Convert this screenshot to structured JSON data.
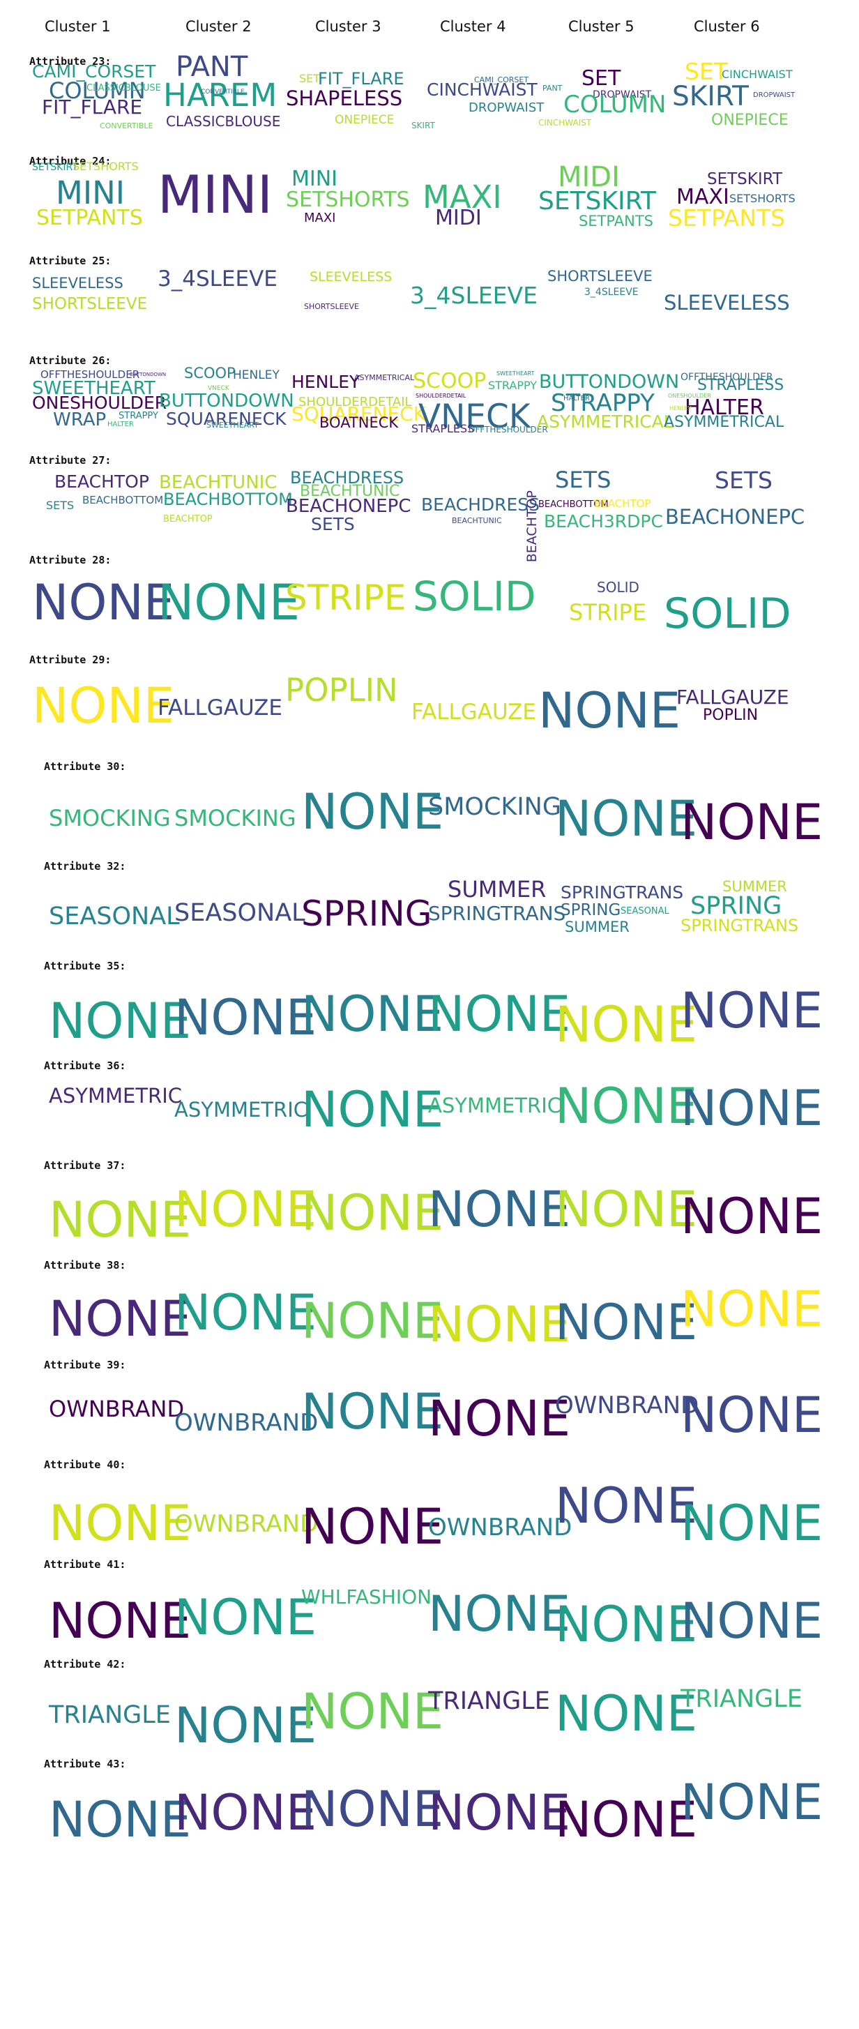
{
  "clusters": [
    "Cluster 1",
    "Cluster 2",
    "Cluster 3",
    "Cluster 4",
    "Cluster 5",
    "Cluster 6"
  ],
  "attributes": [
    {
      "label": "Attribute 23:",
      "words": [
        {
          "t": "CAMI_CORSET",
          "c": "#1f9e89"
        },
        {
          "t": "COLUMN",
          "c": "#31688e"
        },
        {
          "t": "CLASSICBLOUSE",
          "c": "#35b779"
        },
        {
          "t": "FIT_FLARE",
          "c": "#482878"
        },
        {
          "t": "CONVERTIBLE",
          "c": "#6ece58"
        },
        {
          "t": "PANT",
          "c": "#3e4989"
        },
        {
          "t": "HAREM",
          "c": "#1f9e89"
        },
        {
          "t": "CLASSICBLOUSE",
          "c": "#482878"
        },
        {
          "t": "CONVERTIBLE",
          "c": "#31688e"
        },
        {
          "t": "SET",
          "c": "#b5de2b"
        },
        {
          "t": "FIT_FLARE",
          "c": "#26828e"
        },
        {
          "t": "SHAPELESS",
          "c": "#440154"
        },
        {
          "t": "ONEPIECE",
          "c": "#b5de2b"
        },
        {
          "t": "CINCHWAIST",
          "c": "#3e4989"
        },
        {
          "t": "CAMI_CORSET",
          "c": "#31688e"
        },
        {
          "t": "DROPWAIST",
          "c": "#26828e"
        },
        {
          "t": "SKIRT",
          "c": "#35b779"
        },
        {
          "t": "SET",
          "c": "#440154"
        },
        {
          "t": "DROPWAIST",
          "c": "#482878"
        },
        {
          "t": "COLUMN",
          "c": "#35b779"
        },
        {
          "t": "CINCHWAIST",
          "c": "#b5de2b"
        },
        {
          "t": "PANT",
          "c": "#26828e"
        },
        {
          "t": "SET",
          "c": "#fde725"
        },
        {
          "t": "CINCHWAIST",
          "c": "#1f9e89"
        },
        {
          "t": "SKIRT",
          "c": "#31688e"
        },
        {
          "t": "ONEPIECE",
          "c": "#6ece58"
        },
        {
          "t": "DROPWAIST",
          "c": "#3e4989"
        }
      ]
    },
    {
      "label": "Attribute 24:",
      "words": [
        {
          "t": "SETSKIRT",
          "c": "#1f9e89"
        },
        {
          "t": "SETSHORTS",
          "c": "#b5de2b"
        },
        {
          "t": "MINI",
          "c": "#26828e"
        },
        {
          "t": "SETPANTS",
          "c": "#d0e11c"
        },
        {
          "t": "MINI",
          "c": "#482878"
        },
        {
          "t": "MINI",
          "c": "#1f9e89"
        },
        {
          "t": "SETSHORTS",
          "c": "#6ece58"
        },
        {
          "t": "MAXI",
          "c": "#440154"
        },
        {
          "t": "MAXI",
          "c": "#35b779"
        },
        {
          "t": "MIDI",
          "c": "#482878"
        },
        {
          "t": "MIDI",
          "c": "#6ece58"
        },
        {
          "t": "SETSKIRT",
          "c": "#1f9e89"
        },
        {
          "t": "SETPANTS",
          "c": "#35b779"
        },
        {
          "t": "SETSKIRT",
          "c": "#482878"
        },
        {
          "t": "MAXI",
          "c": "#440154"
        },
        {
          "t": "SETSHORTS",
          "c": "#31688e"
        },
        {
          "t": "SETPANTS",
          "c": "#fde725"
        }
      ]
    },
    {
      "label": "Attribute 25:",
      "words": [
        {
          "t": "SLEEVELESS",
          "c": "#31688e"
        },
        {
          "t": "SHORTSLEEVE",
          "c": "#b5de2b"
        },
        {
          "t": "3_4SLEEVE",
          "c": "#3e4989"
        },
        {
          "t": "SLEEVELESS",
          "c": "#b5de2b"
        },
        {
          "t": "SHORTSLEEVE",
          "c": "#482878"
        },
        {
          "t": "3_4SLEEVE",
          "c": "#1f9e89"
        },
        {
          "t": "SHORTSLEEVE",
          "c": "#31688e"
        },
        {
          "t": "3_4SLEEVE",
          "c": "#26828e"
        },
        {
          "t": "SLEEVELESS",
          "c": "#31688e"
        }
      ]
    },
    {
      "label": "Attribute 26:",
      "words": [
        {
          "t": "OFFTHESHOULDER",
          "c": "#3e4989"
        },
        {
          "t": "SWEETHEART",
          "c": "#1f9e89"
        },
        {
          "t": "ONESHOULDER",
          "c": "#440154"
        },
        {
          "t": "WRAP",
          "c": "#31688e"
        },
        {
          "t": "STRAPPY",
          "c": "#26828e"
        },
        {
          "t": "HALTER",
          "c": "#35b779"
        },
        {
          "t": "BUTTONDOWN",
          "c": "#482878"
        },
        {
          "t": "SCOOP",
          "c": "#26828e"
        },
        {
          "t": "HENLEY",
          "c": "#31688e"
        },
        {
          "t": "BUTTONDOWN",
          "c": "#1f9e89"
        },
        {
          "t": "SQUARENECK",
          "c": "#3e4989"
        },
        {
          "t": "SWEETHEART",
          "c": "#26828e"
        },
        {
          "t": "VNECK",
          "c": "#6ece58"
        },
        {
          "t": "HENLEY",
          "c": "#440154"
        },
        {
          "t": "ASYMMETRICAL",
          "c": "#482878"
        },
        {
          "t": "SHOULDERDETAIL",
          "c": "#b5de2b"
        },
        {
          "t": "SQUARENECK",
          "c": "#fde725"
        },
        {
          "t": "BOATNECK",
          "c": "#440154"
        },
        {
          "t": "SCOOP",
          "c": "#d0e11c"
        },
        {
          "t": "SWEETHEART",
          "c": "#26828e"
        },
        {
          "t": "STRAPPY",
          "c": "#35b779"
        },
        {
          "t": "VNECK",
          "c": "#31688e"
        },
        {
          "t": "STRAPLESS",
          "c": "#482878"
        },
        {
          "t": "OFFTHESHOULDER",
          "c": "#26828e"
        },
        {
          "t": "SHOULDERDETAIL",
          "c": "#440154"
        },
        {
          "t": "BUTTONDOWN",
          "c": "#1f9e89"
        },
        {
          "t": "STRAPPY",
          "c": "#26828e"
        },
        {
          "t": "HALTER",
          "c": "#31688e"
        },
        {
          "t": "ASYMMETRICAL",
          "c": "#b5de2b"
        },
        {
          "t": "ONESHOULDER",
          "c": "#6ece58"
        },
        {
          "t": "OFFTHESHOULDER",
          "c": "#31688e"
        },
        {
          "t": "STRAPLESS",
          "c": "#26828e"
        },
        {
          "t": "HALTER",
          "c": "#440154"
        },
        {
          "t": "ASYMMETRICAL",
          "c": "#26828e"
        },
        {
          "t": "HENLEY",
          "c": "#b5de2b"
        }
      ]
    },
    {
      "label": "Attribute 27:",
      "words": [
        {
          "t": "BEACHTOP",
          "c": "#482878"
        },
        {
          "t": "SETS",
          "c": "#26828e"
        },
        {
          "t": "BEACHBOTTOM",
          "c": "#31688e"
        },
        {
          "t": "BEACHTUNIC",
          "c": "#b5de2b"
        },
        {
          "t": "BEACHBOTTOM",
          "c": "#1f9e89"
        },
        {
          "t": "BEACHTOP",
          "c": "#b5de2b"
        },
        {
          "t": "BEACHDRESS",
          "c": "#26828e"
        },
        {
          "t": "BEACHTUNIC",
          "c": "#6ece58"
        },
        {
          "t": "BEACHONEPC",
          "c": "#482878"
        },
        {
          "t": "SETS",
          "c": "#3e4989"
        },
        {
          "t": "BEACHDRESS",
          "c": "#31688e"
        },
        {
          "t": "BEACHTUNIC",
          "c": "#3e4989"
        },
        {
          "t": "BEACHTOP",
          "c": "#482878"
        },
        {
          "t": "SETS",
          "c": "#31688e"
        },
        {
          "t": "BEACHBOTTOM",
          "c": "#440154"
        },
        {
          "t": "BEACHTOP",
          "c": "#fde725"
        },
        {
          "t": "BEACH3RDPC",
          "c": "#35b779"
        },
        {
          "t": "SETS",
          "c": "#3e4989"
        },
        {
          "t": "BEACHONEPC",
          "c": "#31688e"
        }
      ]
    },
    {
      "label": "Attribute 28:",
      "words": [
        {
          "t": "NONE",
          "c": "#3e4989"
        },
        {
          "t": "NONE",
          "c": "#1f9e89"
        },
        {
          "t": "STRIPE",
          "c": "#d0e11c"
        },
        {
          "t": "SOLID",
          "c": "#35b779"
        },
        {
          "t": "SOLID",
          "c": "#3e4989"
        },
        {
          "t": "STRIPE",
          "c": "#d0e11c"
        },
        {
          "t": "SOLID",
          "c": "#1f9e89"
        }
      ]
    },
    {
      "label": "Attribute 29:",
      "words": [
        {
          "t": "NONE",
          "c": "#fde725"
        },
        {
          "t": "FALLGAUZE",
          "c": "#3e4989"
        },
        {
          "t": "POPLIN",
          "c": "#b5de2b"
        },
        {
          "t": "FALLGAUZE",
          "c": "#d0e11c"
        },
        {
          "t": "NONE",
          "c": "#31688e"
        },
        {
          "t": "FALLGAUZE",
          "c": "#482878"
        },
        {
          "t": "POPLIN",
          "c": "#440154"
        }
      ]
    },
    {
      "label": "Attribute 30:",
      "words": [
        {
          "t": "SMOCKING",
          "c": "#35b779"
        },
        {
          "t": "SMOCKING",
          "c": "#35b779"
        },
        {
          "t": "NONE",
          "c": "#26828e"
        },
        {
          "t": "SMOCKING",
          "c": "#31688e"
        },
        {
          "t": "NONE",
          "c": "#26828e"
        },
        {
          "t": "NONE",
          "c": "#440154"
        }
      ]
    },
    {
      "label": "Attribute 32:",
      "words": [
        {
          "t": "SEASONAL",
          "c": "#26828e"
        },
        {
          "t": "SEASONAL",
          "c": "#3e4989"
        },
        {
          "t": "SPRING",
          "c": "#440154"
        },
        {
          "t": "SUMMER",
          "c": "#482878"
        },
        {
          "t": "SPRINGTRANS",
          "c": "#31688e"
        },
        {
          "t": "SPRINGTRANS",
          "c": "#3e4989"
        },
        {
          "t": "SPRING",
          "c": "#31688e"
        },
        {
          "t": "SEASONAL",
          "c": "#1f9e89"
        },
        {
          "t": "SUMMER",
          "c": "#26828e"
        },
        {
          "t": "SUMMER",
          "c": "#b5de2b"
        },
        {
          "t": "SPRING",
          "c": "#1f9e89"
        },
        {
          "t": "SPRINGTRANS",
          "c": "#d0e11c"
        }
      ]
    },
    {
      "label": "Attribute 35:",
      "words": [
        {
          "t": "NONE",
          "c": "#1f9e89"
        },
        {
          "t": "NONE",
          "c": "#31688e"
        },
        {
          "t": "NONE",
          "c": "#26828e"
        },
        {
          "t": "NONE",
          "c": "#1f9e89"
        },
        {
          "t": "NONE",
          "c": "#d0e11c"
        },
        {
          "t": "NONE",
          "c": "#3e4989"
        }
      ]
    },
    {
      "label": "Attribute 36:",
      "words": [
        {
          "t": "ASYMMETRIC",
          "c": "#482878"
        },
        {
          "t": "ASYMMETRIC",
          "c": "#26828e"
        },
        {
          "t": "NONE",
          "c": "#1f9e89"
        },
        {
          "t": "ASYMMETRIC",
          "c": "#35b779"
        },
        {
          "t": "NONE",
          "c": "#35b779"
        },
        {
          "t": "NONE",
          "c": "#31688e"
        }
      ]
    },
    {
      "label": "Attribute 37:",
      "words": [
        {
          "t": "NONE",
          "c": "#b5de2b"
        },
        {
          "t": "NONE",
          "c": "#d0e11c"
        },
        {
          "t": "NONE",
          "c": "#b5de2b"
        },
        {
          "t": "NONE",
          "c": "#31688e"
        },
        {
          "t": "NONE",
          "c": "#b5de2b"
        },
        {
          "t": "NONE",
          "c": "#440154"
        }
      ]
    },
    {
      "label": "Attribute 38:",
      "words": [
        {
          "t": "NONE",
          "c": "#482878"
        },
        {
          "t": "NONE",
          "c": "#1f9e89"
        },
        {
          "t": "NONE",
          "c": "#6ece58"
        },
        {
          "t": "NONE",
          "c": "#d0e11c"
        },
        {
          "t": "NONE",
          "c": "#31688e"
        },
        {
          "t": "NONE",
          "c": "#fde725"
        }
      ]
    },
    {
      "label": "Attribute 39:",
      "words": [
        {
          "t": "OWNBRAND",
          "c": "#440154"
        },
        {
          "t": "OWNBRAND",
          "c": "#31688e"
        },
        {
          "t": "NONE",
          "c": "#26828e"
        },
        {
          "t": "NONE",
          "c": "#440154"
        },
        {
          "t": "OWNBRAND",
          "c": "#3e4989"
        },
        {
          "t": "NONE",
          "c": "#3e4989"
        }
      ]
    },
    {
      "label": "Attribute 40:",
      "words": [
        {
          "t": "NONE",
          "c": "#d0e11c"
        },
        {
          "t": "OWNBRAND",
          "c": "#b5de2b"
        },
        {
          "t": "NONE",
          "c": "#440154"
        },
        {
          "t": "OWNBRAND",
          "c": "#26828e"
        },
        {
          "t": "NONE",
          "c": "#3e4989"
        },
        {
          "t": "NONE",
          "c": "#1f9e89"
        }
      ]
    },
    {
      "label": "Attribute 41:",
      "words": [
        {
          "t": "NONE",
          "c": "#440154"
        },
        {
          "t": "NONE",
          "c": "#1f9e89"
        },
        {
          "t": "WHLFASHION",
          "c": "#35b779"
        },
        {
          "t": "NONE",
          "c": "#26828e"
        },
        {
          "t": "NONE",
          "c": "#1f9e89"
        },
        {
          "t": "NONE",
          "c": "#31688e"
        }
      ]
    },
    {
      "label": "Attribute 42:",
      "words": [
        {
          "t": "TRIANGLE",
          "c": "#26828e"
        },
        {
          "t": "NONE",
          "c": "#26828e"
        },
        {
          "t": "NONE",
          "c": "#6ece58"
        },
        {
          "t": "TRIANGLE",
          "c": "#482878"
        },
        {
          "t": "NONE",
          "c": "#1f9e89"
        },
        {
          "t": "TRIANGLE",
          "c": "#35b779"
        }
      ]
    },
    {
      "label": "Attribute 43:",
      "words": [
        {
          "t": "NONE",
          "c": "#31688e"
        },
        {
          "t": "NONE",
          "c": "#482878"
        },
        {
          "t": "NONE",
          "c": "#3e4989"
        },
        {
          "t": "NONE",
          "c": "#482878"
        },
        {
          "t": "NONE",
          "c": "#440154"
        },
        {
          "t": "NONE",
          "c": "#31688e"
        }
      ]
    }
  ]
}
